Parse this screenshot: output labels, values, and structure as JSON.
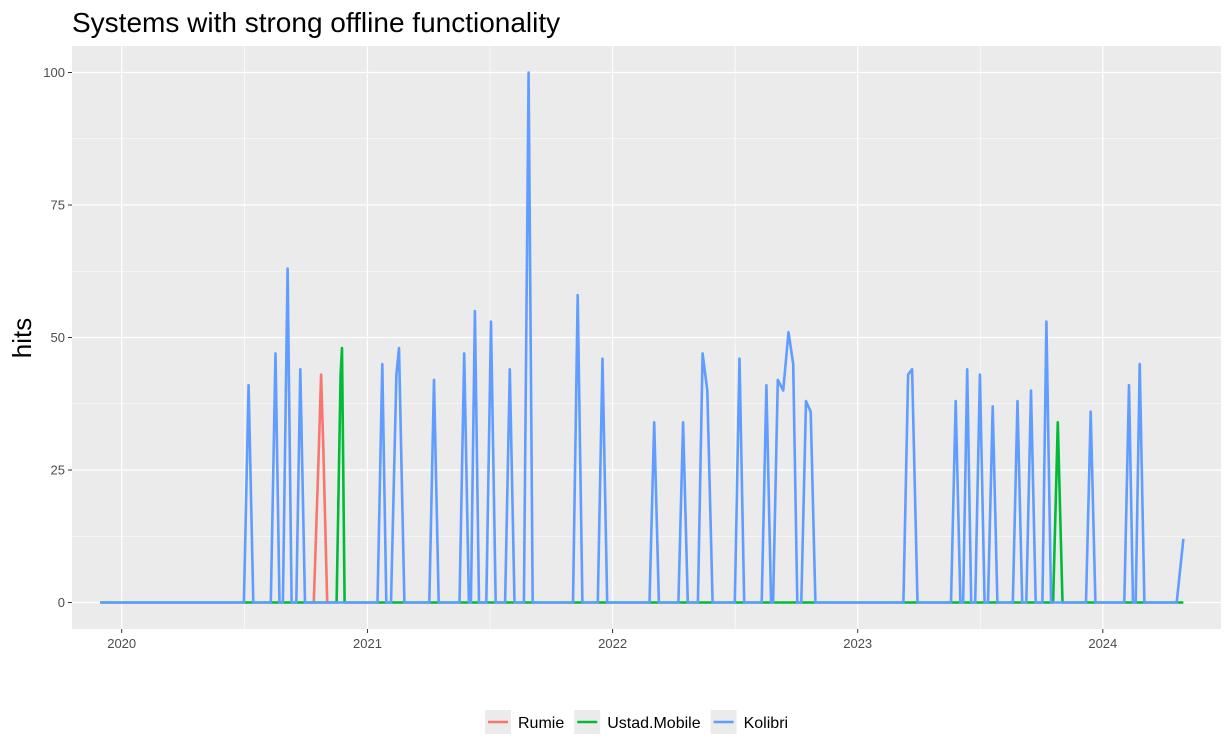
{
  "chart_data": {
    "type": "line",
    "title": "Systems with strong offline functionality",
    "xlabel": "",
    "ylabel": "hits",
    "xlim": [
      "2019-10-19",
      "2024-06-25"
    ],
    "ylim": [
      -5,
      105
    ],
    "x_ticks": [
      "2020",
      "2021",
      "2022",
      "2023",
      "2024"
    ],
    "y_ticks": [
      0,
      25,
      50,
      75,
      100
    ],
    "grid": true,
    "legend": {
      "position": "bottom"
    },
    "series": [
      {
        "name": "Rumie",
        "color": "#F8766D",
        "points": [
          [
            "2020-10-13",
            0
          ],
          [
            "2020-10-20",
            27
          ],
          [
            "2020-10-24",
            43
          ],
          [
            "2020-10-27",
            30
          ],
          [
            "2020-11-02",
            0
          ]
        ]
      },
      {
        "name": "Ustad.Mobile",
        "color": "#00BA38",
        "points": [
          [
            "2019-11-30",
            0
          ],
          [
            "2020-11-16",
            0
          ],
          [
            "2020-11-22",
            43
          ],
          [
            "2020-11-24",
            48
          ],
          [
            "2020-11-28",
            0
          ],
          [
            "2023-10-19",
            0
          ],
          [
            "2023-10-26",
            34
          ],
          [
            "2023-11-02",
            0
          ],
          [
            "2024-04-30",
            0
          ]
        ]
      },
      {
        "name": "Kolibri",
        "color": "#619CFF",
        "points": [
          [
            "2019-11-30",
            0
          ],
          [
            "2020-07-01",
            0
          ],
          [
            "2020-07-08",
            41
          ],
          [
            "2020-07-15",
            0
          ],
          [
            "2020-08-10",
            0
          ],
          [
            "2020-08-17",
            47
          ],
          [
            "2020-08-23",
            0
          ],
          [
            "2020-08-28",
            0
          ],
          [
            "2020-09-04",
            63
          ],
          [
            "2020-09-10",
            0
          ],
          [
            "2020-09-17",
            0
          ],
          [
            "2020-09-23",
            44
          ],
          [
            "2020-09-30",
            0
          ],
          [
            "2021-01-16",
            0
          ],
          [
            "2021-01-23",
            45
          ],
          [
            "2021-01-29",
            0
          ],
          [
            "2021-02-05",
            0
          ],
          [
            "2021-02-13",
            43
          ],
          [
            "2021-02-17",
            48
          ],
          [
            "2021-02-25",
            0
          ],
          [
            "2021-04-03",
            0
          ],
          [
            "2021-04-10",
            42
          ],
          [
            "2021-04-17",
            0
          ],
          [
            "2021-05-18",
            0
          ],
          [
            "2021-05-25",
            47
          ],
          [
            "2021-06-01",
            0
          ],
          [
            "2021-06-04",
            0
          ],
          [
            "2021-06-10",
            55
          ],
          [
            "2021-06-16",
            0
          ],
          [
            "2021-06-27",
            0
          ],
          [
            "2021-07-04",
            53
          ],
          [
            "2021-07-11",
            0
          ],
          [
            "2021-07-25",
            0
          ],
          [
            "2021-08-01",
            44
          ],
          [
            "2021-08-08",
            0
          ],
          [
            "2021-08-22",
            0
          ],
          [
            "2021-08-29",
            100
          ],
          [
            "2021-09-04",
            0
          ],
          [
            "2021-11-03",
            0
          ],
          [
            "2021-11-10",
            58
          ],
          [
            "2021-11-17",
            0
          ],
          [
            "2021-12-10",
            0
          ],
          [
            "2021-12-17",
            46
          ],
          [
            "2021-12-24",
            0
          ],
          [
            "2022-02-25",
            0
          ],
          [
            "2022-03-04",
            34
          ],
          [
            "2022-03-11",
            0
          ],
          [
            "2022-04-09",
            0
          ],
          [
            "2022-04-16",
            34
          ],
          [
            "2022-04-23",
            0
          ],
          [
            "2022-05-08",
            0
          ],
          [
            "2022-05-15",
            47
          ],
          [
            "2022-05-22",
            40
          ],
          [
            "2022-05-30",
            0
          ],
          [
            "2022-07-02",
            0
          ],
          [
            "2022-07-09",
            46
          ],
          [
            "2022-07-16",
            0
          ],
          [
            "2022-08-11",
            0
          ],
          [
            "2022-08-18",
            41
          ],
          [
            "2022-08-25",
            0
          ],
          [
            "2022-08-28",
            0
          ],
          [
            "2022-09-04",
            42
          ],
          [
            "2022-09-12",
            40
          ],
          [
            "2022-09-20",
            51
          ],
          [
            "2022-09-27",
            45
          ],
          [
            "2022-10-03",
            0
          ],
          [
            "2022-10-09",
            0
          ],
          [
            "2022-10-16",
            38
          ],
          [
            "2022-10-23",
            36
          ],
          [
            "2022-10-30",
            0
          ],
          [
            "2023-03-10",
            0
          ],
          [
            "2023-03-17",
            43
          ],
          [
            "2023-03-23",
            44
          ],
          [
            "2023-03-31",
            0
          ],
          [
            "2023-05-20",
            0
          ],
          [
            "2023-05-27",
            38
          ],
          [
            "2023-06-03",
            0
          ],
          [
            "2023-06-07",
            0
          ],
          [
            "2023-06-13",
            44
          ],
          [
            "2023-06-19",
            0
          ],
          [
            "2023-06-25",
            0
          ],
          [
            "2023-07-02",
            43
          ],
          [
            "2023-07-09",
            0
          ],
          [
            "2023-07-14",
            0
          ],
          [
            "2023-07-21",
            37
          ],
          [
            "2023-07-28",
            0
          ],
          [
            "2023-08-20",
            0
          ],
          [
            "2023-08-27",
            38
          ],
          [
            "2023-09-03",
            0
          ],
          [
            "2023-09-09",
            0
          ],
          [
            "2023-09-16",
            40
          ],
          [
            "2023-09-23",
            0
          ],
          [
            "2023-10-03",
            0
          ],
          [
            "2023-10-09",
            53
          ],
          [
            "2023-10-16",
            0
          ],
          [
            "2023-12-07",
            0
          ],
          [
            "2023-12-14",
            36
          ],
          [
            "2023-12-21",
            0
          ],
          [
            "2024-02-02",
            0
          ],
          [
            "2024-02-09",
            41
          ],
          [
            "2024-02-15",
            0
          ],
          [
            "2024-02-19",
            0
          ],
          [
            "2024-02-25",
            45
          ],
          [
            "2024-03-03",
            0
          ],
          [
            "2024-04-20",
            0
          ],
          [
            "2024-04-30",
            12
          ]
        ]
      }
    ]
  }
}
